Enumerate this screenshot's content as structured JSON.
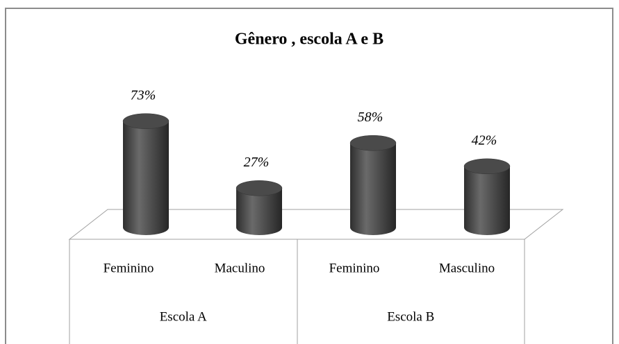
{
  "chart_data": {
    "type": "bar",
    "title": "Gênero , escola A e B",
    "categories": [
      "Feminino",
      "Maculino",
      "Feminino",
      "Masculino"
    ],
    "groups": [
      "Escola A",
      "Escola B"
    ],
    "values": [
      73,
      27,
      58,
      42
    ],
    "value_labels": [
      "73%",
      "27%",
      "58%",
      "42%"
    ],
    "color": "#4a4a4a"
  }
}
